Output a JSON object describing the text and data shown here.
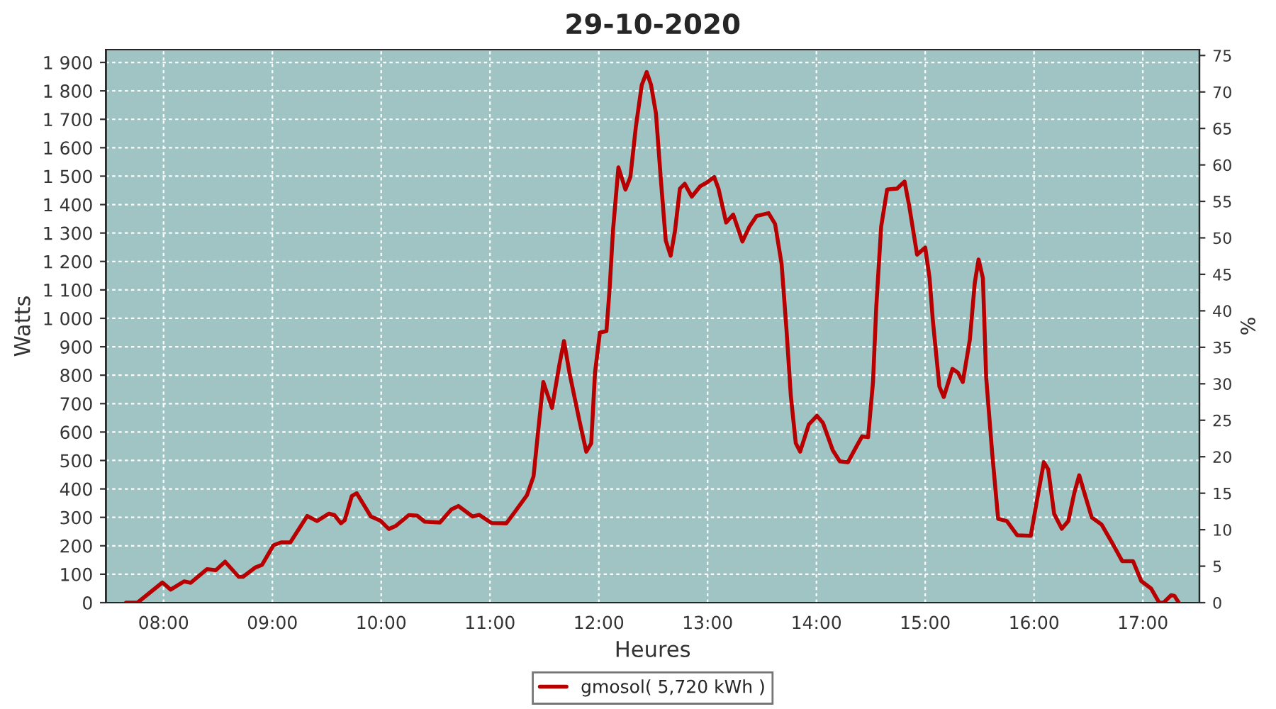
{
  "chart_data": {
    "type": "line",
    "title": "29-10-2020",
    "xlabel": "Heures",
    "ylabel": "Watts",
    "y2label": "%",
    "xlim": [
      7.47,
      17.52
    ],
    "ylim": [
      0,
      1945
    ],
    "y2lim": [
      0,
      75.8
    ],
    "xticks": [
      {
        "value": 8,
        "label": "08:00"
      },
      {
        "value": 9,
        "label": "09:00"
      },
      {
        "value": 10,
        "label": "10:00"
      },
      {
        "value": 11,
        "label": "11:00"
      },
      {
        "value": 12,
        "label": "12:00"
      },
      {
        "value": 13,
        "label": "13:00"
      },
      {
        "value": 14,
        "label": "14:00"
      },
      {
        "value": 15,
        "label": "15:00"
      },
      {
        "value": 16,
        "label": "16:00"
      },
      {
        "value": 17,
        "label": "17:00"
      }
    ],
    "yticks": [
      0,
      100,
      200,
      300,
      400,
      500,
      600,
      700,
      800,
      900,
      {
        "value": 1000,
        "label": "1 000"
      },
      {
        "value": 1100,
        "label": "1 100"
      },
      {
        "value": 1200,
        "label": "1 200"
      },
      {
        "value": 1300,
        "label": "1 300"
      },
      {
        "value": 1400,
        "label": "1 400"
      },
      {
        "value": 1500,
        "label": "1 500"
      },
      {
        "value": 1600,
        "label": "1 600"
      },
      {
        "value": 1700,
        "label": "1 700"
      },
      {
        "value": 1800,
        "label": "1 800"
      },
      {
        "value": 1900,
        "label": "1 900"
      }
    ],
    "y2ticks": [
      0,
      5,
      10,
      15,
      20,
      25,
      30,
      35,
      40,
      45,
      50,
      55,
      60,
      65,
      70,
      75
    ],
    "grid": true,
    "legend": "bottom",
    "marker": "none",
    "line_style": "solid",
    "series": [
      {
        "name": "gmosol( 5,720 kWh )",
        "color": "#b80000",
        "x": [
          7.655,
          7.76,
          7.99,
          8.065,
          8.19,
          8.25,
          8.4,
          8.48,
          8.565,
          8.69,
          8.73,
          8.84,
          8.905,
          9.01,
          9.08,
          9.165,
          9.32,
          9.41,
          9.52,
          9.57,
          9.63,
          9.665,
          9.73,
          9.775,
          9.905,
          9.99,
          10.07,
          10.135,
          10.255,
          10.33,
          10.4,
          10.54,
          10.645,
          10.71,
          10.84,
          10.9,
          11.015,
          11.15,
          11.23,
          11.34,
          11.4,
          11.44,
          11.49,
          11.57,
          11.64,
          11.68,
          11.73,
          11.82,
          11.885,
          11.93,
          11.965,
          12.01,
          12.07,
          12.1,
          12.13,
          12.18,
          12.245,
          12.29,
          12.34,
          12.395,
          12.44,
          12.48,
          12.525,
          12.57,
          12.615,
          12.66,
          12.7,
          12.745,
          12.79,
          12.855,
          12.93,
          12.995,
          13.06,
          13.1,
          13.17,
          13.235,
          13.32,
          13.385,
          13.45,
          13.56,
          13.62,
          13.68,
          13.725,
          13.765,
          13.81,
          13.85,
          13.93,
          14.005,
          14.06,
          14.15,
          14.215,
          14.29,
          14.36,
          14.42,
          14.475,
          14.52,
          14.55,
          14.595,
          14.65,
          14.74,
          14.81,
          14.855,
          14.925,
          15.0,
          15.04,
          15.07,
          15.13,
          15.17,
          15.25,
          15.3,
          15.345,
          15.41,
          15.455,
          15.49,
          15.53,
          15.56,
          15.615,
          15.67,
          15.75,
          15.845,
          15.97,
          16.02,
          16.09,
          16.13,
          16.185,
          16.255,
          16.315,
          16.37,
          16.415,
          16.475,
          16.53,
          16.62,
          16.715,
          16.81,
          16.91,
          16.985,
          17.075,
          17.15,
          17.19,
          17.26,
          17.29,
          17.33
        ],
        "values": [
          0,
          0,
          71,
          46,
          75,
          70,
          118,
          114,
          144,
          91,
          91,
          123,
          133,
          202,
          212,
          212,
          305,
          287,
          313,
          308,
          279,
          290,
          375,
          385,
          303,
          289,
          259,
          270,
          308,
          306,
          285,
          282,
          328,
          340,
          303,
          309,
          280,
          279,
          320,
          378,
          444,
          594,
          776,
          685,
          842,
          920,
          809,
          643,
          531,
          560,
          809,
          950,
          955,
          1108,
          1307,
          1531,
          1453,
          1497,
          1672,
          1821,
          1866,
          1821,
          1721,
          1489,
          1274,
          1220,
          1307,
          1456,
          1473,
          1428,
          1464,
          1478,
          1497,
          1456,
          1337,
          1365,
          1270,
          1323,
          1360,
          1370,
          1332,
          1191,
          959,
          726,
          561,
          531,
          627,
          657,
          632,
          536,
          497,
          494,
          544,
          585,
          582,
          776,
          1041,
          1323,
          1453,
          1456,
          1481,
          1390,
          1224,
          1249,
          1141,
          992,
          760,
          723,
          822,
          809,
          776,
          925,
          1124,
          1207,
          1141,
          792,
          527,
          295,
          287,
          237,
          235,
          345,
          494,
          469,
          312,
          260,
          287,
          386,
          448,
          370,
          300,
          275,
          212,
          146,
          146,
          76,
          50,
          0,
          0,
          26,
          24,
          0
        ]
      }
    ]
  }
}
